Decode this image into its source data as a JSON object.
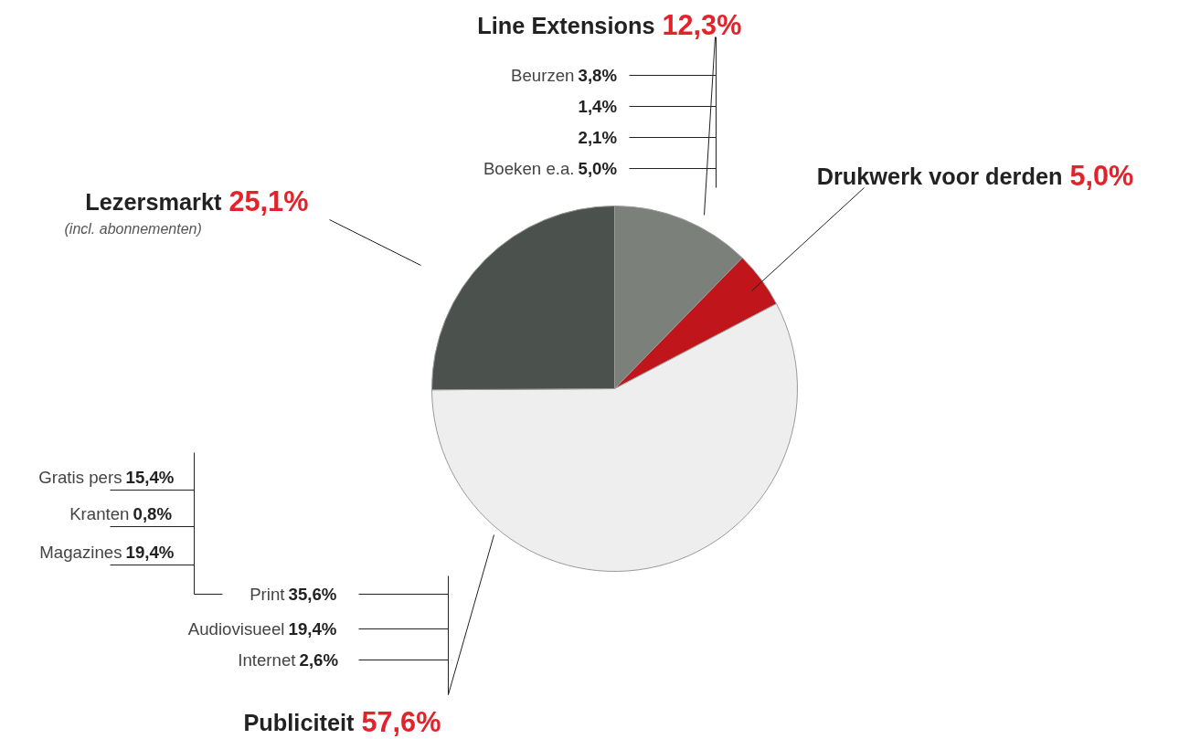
{
  "chart_data": {
    "type": "pie",
    "categories": [
      "Line Extensions",
      "Drukwerk voor derden",
      "Publiciteit",
      "Lezersmarkt"
    ],
    "values": [
      12.3,
      5.0,
      57.6,
      25.1
    ],
    "value_labels": [
      "12,3%",
      "5,0%",
      "57,6%",
      "25,1%"
    ],
    "colors": [
      "#7b807b",
      "#c0161b",
      "#eeeeee",
      "#4b524e"
    ],
    "annotations": [
      "(incl. abonnementen)",
      "Beurzen 3,8%",
      "1,4%",
      "2,1%",
      "Boeken e.a. 5,0%",
      "Gratis pers 15,4%",
      "Kranten 0,8%",
      "Magazines 19,4%",
      "Print 35,6%",
      "Audiovisueel 19,4%",
      "Internet 2,6%"
    ]
  }
}
